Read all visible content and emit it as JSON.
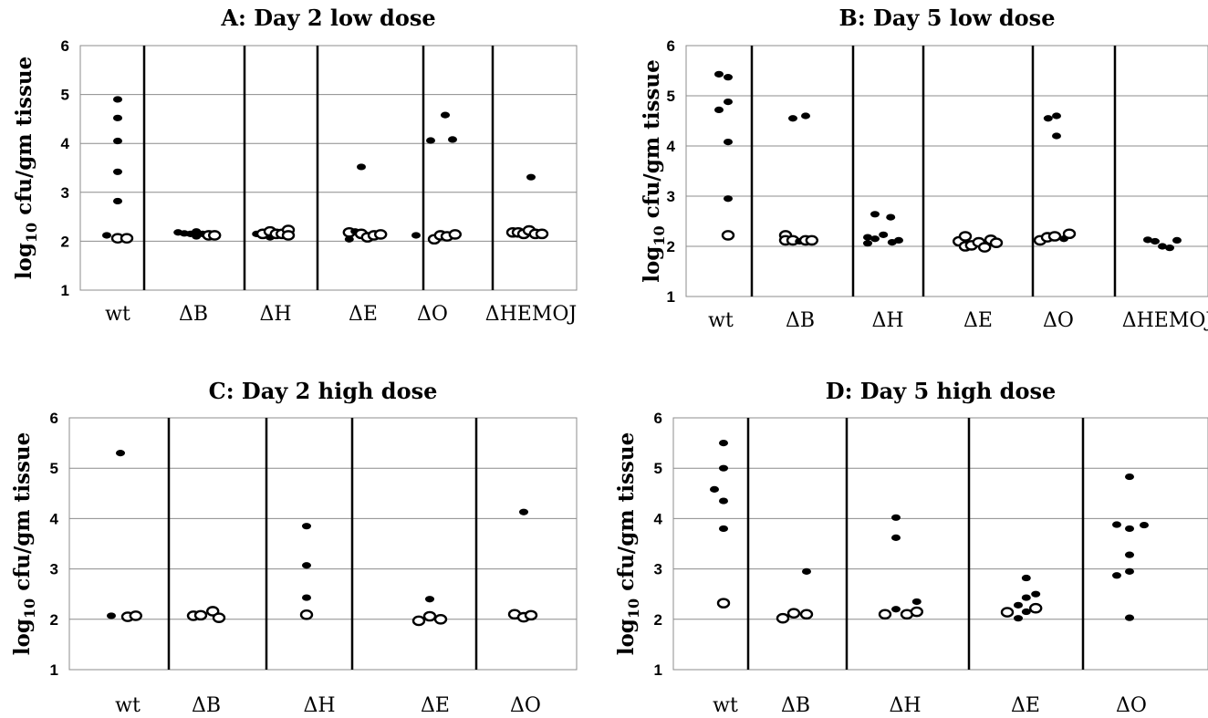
{
  "chart_data": [
    {
      "type": "scatter",
      "title": "A: Day 2 low dose",
      "ylabel_main": "log",
      "ylabel_sub": "10",
      "ylabel_rest": " cfu/gm tissue",
      "ylim": [
        1,
        6
      ],
      "yticks": [
        "1",
        "2",
        "3",
        "4",
        "5",
        "6"
      ],
      "grid": true,
      "categories": [
        "wt",
        "ΔB",
        "ΔH",
        "ΔE",
        "ΔO",
        "ΔHEMOJ"
      ],
      "points": [
        {
          "category": "wt",
          "offset": -0.3,
          "y": 2.12,
          "marker": "filled"
        },
        {
          "category": "wt",
          "offset": 0.0,
          "y": 4.9,
          "marker": "filled"
        },
        {
          "category": "wt",
          "offset": 0.0,
          "y": 4.52,
          "marker": "filled"
        },
        {
          "category": "wt",
          "offset": 0.0,
          "y": 4.05,
          "marker": "filled"
        },
        {
          "category": "wt",
          "offset": 0.0,
          "y": 3.42,
          "marker": "filled"
        },
        {
          "category": "wt",
          "offset": 0.0,
          "y": 2.82,
          "marker": "filled"
        },
        {
          "category": "wt",
          "offset": 0.0,
          "y": 2.06,
          "marker": "open"
        },
        {
          "category": "wt",
          "offset": 0.25,
          "y": 2.06,
          "marker": "open"
        },
        {
          "category": "ΔB",
          "offset": -0.42,
          "y": 2.18,
          "marker": "filled"
        },
        {
          "category": "ΔB",
          "offset": -0.25,
          "y": 2.16,
          "marker": "filled"
        },
        {
          "category": "ΔB",
          "offset": -0.08,
          "y": 2.15,
          "marker": "filled"
        },
        {
          "category": "ΔB",
          "offset": 0.08,
          "y": 2.2,
          "marker": "filled"
        },
        {
          "category": "ΔB",
          "offset": 0.08,
          "y": 2.1,
          "marker": "filled"
        },
        {
          "category": "ΔB",
          "offset": 0.25,
          "y": 2.15,
          "marker": "filled"
        },
        {
          "category": "ΔB",
          "offset": 0.42,
          "y": 2.12,
          "marker": "open"
        },
        {
          "category": "ΔB",
          "offset": 0.58,
          "y": 2.12,
          "marker": "open"
        },
        {
          "category": "ΔH",
          "offset": -0.52,
          "y": 2.15,
          "marker": "filled"
        },
        {
          "category": "ΔH",
          "offset": -0.35,
          "y": 2.15,
          "marker": "open"
        },
        {
          "category": "ΔH",
          "offset": -0.15,
          "y": 2.2,
          "marker": "open"
        },
        {
          "category": "ΔH",
          "offset": -0.15,
          "y": 2.08,
          "marker": "filled"
        },
        {
          "category": "ΔH",
          "offset": 0.02,
          "y": 2.15,
          "marker": "open"
        },
        {
          "category": "ΔH",
          "offset": 0.18,
          "y": 2.15,
          "marker": "open"
        },
        {
          "category": "ΔH",
          "offset": 0.35,
          "y": 2.23,
          "marker": "open"
        },
        {
          "category": "ΔH",
          "offset": 0.35,
          "y": 2.12,
          "marker": "open"
        },
        {
          "category": "ΔE",
          "offset": -0.38,
          "y": 2.18,
          "marker": "open"
        },
        {
          "category": "ΔE",
          "offset": -0.38,
          "y": 2.04,
          "marker": "filled"
        },
        {
          "category": "ΔE",
          "offset": -0.22,
          "y": 2.2,
          "marker": "filled"
        },
        {
          "category": "ΔE",
          "offset": -0.05,
          "y": 3.52,
          "marker": "filled"
        },
        {
          "category": "ΔE",
          "offset": -0.05,
          "y": 2.15,
          "marker": "open"
        },
        {
          "category": "ΔE",
          "offset": 0.12,
          "y": 2.08,
          "marker": "open"
        },
        {
          "category": "ΔE",
          "offset": 0.3,
          "y": 2.12,
          "marker": "open"
        },
        {
          "category": "ΔE",
          "offset": 0.48,
          "y": 2.14,
          "marker": "open"
        },
        {
          "category": "ΔO",
          "offset": -0.45,
          "y": 2.12,
          "marker": "filled"
        },
        {
          "category": "ΔO",
          "offset": -0.05,
          "y": 4.06,
          "marker": "filled"
        },
        {
          "category": "ΔO",
          "offset": 0.05,
          "y": 2.04,
          "marker": "open"
        },
        {
          "category": "ΔO",
          "offset": 0.22,
          "y": 2.12,
          "marker": "open"
        },
        {
          "category": "ΔO",
          "offset": 0.35,
          "y": 4.58,
          "marker": "filled"
        },
        {
          "category": "ΔO",
          "offset": 0.4,
          "y": 2.1,
          "marker": "open"
        },
        {
          "category": "ΔO",
          "offset": 0.55,
          "y": 4.08,
          "marker": "filled"
        },
        {
          "category": "ΔO",
          "offset": 0.62,
          "y": 2.14,
          "marker": "open"
        },
        {
          "category": "ΔHEMOJ",
          "offset": -0.5,
          "y": 2.18,
          "marker": "open"
        },
        {
          "category": "ΔHEMOJ",
          "offset": -0.35,
          "y": 2.18,
          "marker": "open"
        },
        {
          "category": "ΔHEMOJ",
          "offset": -0.2,
          "y": 2.15,
          "marker": "open"
        },
        {
          "category": "ΔHEMOJ",
          "offset": -0.05,
          "y": 2.22,
          "marker": "open"
        },
        {
          "category": "ΔHEMOJ",
          "offset": 0.0,
          "y": 3.31,
          "marker": "filled"
        },
        {
          "category": "ΔHEMOJ",
          "offset": 0.12,
          "y": 2.15,
          "marker": "open"
        },
        {
          "category": "ΔHEMOJ",
          "offset": 0.3,
          "y": 2.15,
          "marker": "open"
        }
      ]
    },
    {
      "type": "scatter",
      "title": "B: Day 5 low dose",
      "ylabel_main": "log",
      "ylabel_sub": "10",
      "ylabel_rest": " cfu/gm tissue",
      "ylim": [
        1,
        6
      ],
      "yticks": [
        "1",
        "2",
        "3",
        "4",
        "5",
        "6"
      ],
      "grid": true,
      "categories": [
        "wt",
        "ΔB",
        "ΔH",
        "ΔE",
        "ΔO",
        "ΔHEMOJ"
      ],
      "points": [
        {
          "category": "wt",
          "offset": -0.05,
          "y": 5.43,
          "marker": "filled"
        },
        {
          "category": "wt",
          "offset": -0.05,
          "y": 4.72,
          "marker": "filled"
        },
        {
          "category": "wt",
          "offset": 0.2,
          "y": 5.37,
          "marker": "filled"
        },
        {
          "category": "wt",
          "offset": 0.2,
          "y": 4.88,
          "marker": "filled"
        },
        {
          "category": "wt",
          "offset": 0.2,
          "y": 4.08,
          "marker": "filled"
        },
        {
          "category": "wt",
          "offset": 0.2,
          "y": 2.95,
          "marker": "filled"
        },
        {
          "category": "wt",
          "offset": 0.2,
          "y": 2.22,
          "marker": "open"
        },
        {
          "category": "ΔB",
          "offset": -0.4,
          "y": 2.22,
          "marker": "open"
        },
        {
          "category": "ΔB",
          "offset": -0.4,
          "y": 2.12,
          "marker": "open"
        },
        {
          "category": "ΔB",
          "offset": -0.2,
          "y": 4.55,
          "marker": "filled"
        },
        {
          "category": "ΔB",
          "offset": -0.2,
          "y": 2.12,
          "marker": "open"
        },
        {
          "category": "ΔB",
          "offset": -0.02,
          "y": 2.1,
          "marker": "filled"
        },
        {
          "category": "ΔB",
          "offset": 0.15,
          "y": 4.6,
          "marker": "filled"
        },
        {
          "category": "ΔB",
          "offset": 0.15,
          "y": 2.12,
          "marker": "open"
        },
        {
          "category": "ΔB",
          "offset": 0.32,
          "y": 2.12,
          "marker": "open"
        },
        {
          "category": "ΔH",
          "offset": -0.55,
          "y": 2.18,
          "marker": "filled"
        },
        {
          "category": "ΔH",
          "offset": -0.55,
          "y": 2.06,
          "marker": "filled"
        },
        {
          "category": "ΔH",
          "offset": -0.35,
          "y": 2.64,
          "marker": "filled"
        },
        {
          "category": "ΔH",
          "offset": -0.35,
          "y": 2.15,
          "marker": "filled"
        },
        {
          "category": "ΔH",
          "offset": -0.12,
          "y": 2.23,
          "marker": "filled"
        },
        {
          "category": "ΔH",
          "offset": 0.08,
          "y": 2.58,
          "marker": "filled"
        },
        {
          "category": "ΔH",
          "offset": 0.12,
          "y": 2.08,
          "marker": "filled"
        },
        {
          "category": "ΔH",
          "offset": 0.3,
          "y": 2.12,
          "marker": "filled"
        },
        {
          "category": "ΔE",
          "offset": -0.52,
          "y": 2.1,
          "marker": "open"
        },
        {
          "category": "ΔE",
          "offset": -0.35,
          "y": 2.2,
          "marker": "open"
        },
        {
          "category": "ΔE",
          "offset": -0.35,
          "y": 2.0,
          "marker": "open"
        },
        {
          "category": "ΔE",
          "offset": -0.18,
          "y": 2.02,
          "marker": "open"
        },
        {
          "category": "ΔE",
          "offset": 0.02,
          "y": 2.08,
          "marker": "open"
        },
        {
          "category": "ΔE",
          "offset": 0.18,
          "y": 1.98,
          "marker": "open"
        },
        {
          "category": "ΔE",
          "offset": 0.35,
          "y": 2.13,
          "marker": "open"
        },
        {
          "category": "ΔE",
          "offset": 0.5,
          "y": 2.07,
          "marker": "open"
        },
        {
          "category": "ΔO",
          "offset": -0.5,
          "y": 2.12,
          "marker": "open"
        },
        {
          "category": "ΔO",
          "offset": -0.28,
          "y": 4.55,
          "marker": "filled"
        },
        {
          "category": "ΔO",
          "offset": -0.3,
          "y": 2.18,
          "marker": "open"
        },
        {
          "category": "ΔO",
          "offset": -0.05,
          "y": 4.6,
          "marker": "filled"
        },
        {
          "category": "ΔO",
          "offset": -0.05,
          "y": 4.2,
          "marker": "filled"
        },
        {
          "category": "ΔO",
          "offset": -0.1,
          "y": 2.2,
          "marker": "open"
        },
        {
          "category": "ΔO",
          "offset": 0.15,
          "y": 2.15,
          "marker": "filled"
        },
        {
          "category": "ΔO",
          "offset": 0.3,
          "y": 2.25,
          "marker": "open"
        },
        {
          "category": "ΔHEMOJ",
          "offset": -0.55,
          "y": 2.13,
          "marker": "filled"
        },
        {
          "category": "ΔHEMOJ",
          "offset": -0.35,
          "y": 2.1,
          "marker": "filled"
        },
        {
          "category": "ΔHEMOJ",
          "offset": -0.15,
          "y": 2.0,
          "marker": "filled"
        },
        {
          "category": "ΔHEMOJ",
          "offset": 0.05,
          "y": 1.97,
          "marker": "filled"
        },
        {
          "category": "ΔHEMOJ",
          "offset": 0.25,
          "y": 2.12,
          "marker": "filled"
        }
      ]
    },
    {
      "type": "scatter",
      "title": "C: Day 2 high dose",
      "ylabel_main": "log",
      "ylabel_sub": "10",
      "ylabel_rest": " cfu/gm tissue",
      "ylim": [
        1,
        6
      ],
      "yticks": [
        "1",
        "2",
        "3",
        "4",
        "5",
        "6"
      ],
      "grid": true,
      "categories": [
        "wt",
        "ΔB",
        "ΔH",
        "ΔE",
        "ΔO"
      ],
      "points": [
        {
          "category": "wt",
          "offset": -0.45,
          "y": 2.07,
          "marker": "filled"
        },
        {
          "category": "wt",
          "offset": -0.2,
          "y": 5.3,
          "marker": "filled"
        },
        {
          "category": "wt",
          "offset": 0.0,
          "y": 2.05,
          "marker": "open"
        },
        {
          "category": "wt",
          "offset": 0.22,
          "y": 2.07,
          "marker": "open"
        },
        {
          "category": "ΔB",
          "offset": -0.35,
          "y": 2.07,
          "marker": "open"
        },
        {
          "category": "ΔB",
          "offset": -0.15,
          "y": 2.08,
          "marker": "open"
        },
        {
          "category": "ΔB",
          "offset": 0.18,
          "y": 2.16,
          "marker": "open"
        },
        {
          "category": "ΔB",
          "offset": 0.35,
          "y": 2.03,
          "marker": "open"
        },
        {
          "category": "ΔH",
          "offset": -0.35,
          "y": 3.85,
          "marker": "filled"
        },
        {
          "category": "ΔH",
          "offset": -0.35,
          "y": 3.07,
          "marker": "filled"
        },
        {
          "category": "ΔH",
          "offset": -0.35,
          "y": 2.43,
          "marker": "filled"
        },
        {
          "category": "ΔH",
          "offset": -0.35,
          "y": 2.09,
          "marker": "open"
        },
        {
          "category": "ΔE",
          "offset": -0.45,
          "y": 1.97,
          "marker": "open"
        },
        {
          "category": "ΔE",
          "offset": -0.15,
          "y": 2.4,
          "marker": "filled"
        },
        {
          "category": "ΔE",
          "offset": -0.15,
          "y": 2.06,
          "marker": "open"
        },
        {
          "category": "ΔE",
          "offset": 0.15,
          "y": 2.0,
          "marker": "open"
        },
        {
          "category": "ΔO",
          "offset": -0.3,
          "y": 2.1,
          "marker": "open"
        },
        {
          "category": "ΔO",
          "offset": -0.05,
          "y": 4.13,
          "marker": "filled"
        },
        {
          "category": "ΔO",
          "offset": -0.05,
          "y": 2.04,
          "marker": "open"
        },
        {
          "category": "ΔO",
          "offset": 0.15,
          "y": 2.08,
          "marker": "open"
        }
      ]
    },
    {
      "type": "scatter",
      "title": "D: Day 5 high dose",
      "ylabel_main": "log",
      "ylabel_sub": "10",
      "ylabel_rest": " cfu/gm tissue",
      "ylim": [
        1,
        6
      ],
      "yticks": [
        "1",
        "2",
        "3",
        "4",
        "5",
        "6"
      ],
      "grid": true,
      "categories": [
        "wt",
        "ΔB",
        "ΔH",
        "ΔE",
        "ΔO"
      ],
      "points": [
        {
          "category": "wt",
          "offset": -0.3,
          "y": 4.58,
          "marker": "filled"
        },
        {
          "category": "wt",
          "offset": -0.05,
          "y": 5.5,
          "marker": "filled"
        },
        {
          "category": "wt",
          "offset": -0.05,
          "y": 5.0,
          "marker": "filled"
        },
        {
          "category": "wt",
          "offset": -0.05,
          "y": 4.35,
          "marker": "filled"
        },
        {
          "category": "wt",
          "offset": -0.05,
          "y": 3.8,
          "marker": "filled"
        },
        {
          "category": "wt",
          "offset": -0.05,
          "y": 2.32,
          "marker": "open"
        },
        {
          "category": "ΔB",
          "offset": -0.35,
          "y": 2.02,
          "marker": "open"
        },
        {
          "category": "ΔB",
          "offset": -0.05,
          "y": 2.12,
          "marker": "open"
        },
        {
          "category": "ΔB",
          "offset": 0.3,
          "y": 2.95,
          "marker": "filled"
        },
        {
          "category": "ΔB",
          "offset": 0.3,
          "y": 2.1,
          "marker": "open"
        },
        {
          "category": "ΔH",
          "offset": -0.55,
          "y": 2.1,
          "marker": "open"
        },
        {
          "category": "ΔH",
          "offset": -0.25,
          "y": 4.02,
          "marker": "filled"
        },
        {
          "category": "ΔH",
          "offset": -0.25,
          "y": 3.62,
          "marker": "filled"
        },
        {
          "category": "ΔH",
          "offset": -0.25,
          "y": 2.2,
          "marker": "filled"
        },
        {
          "category": "ΔH",
          "offset": 0.05,
          "y": 2.1,
          "marker": "open"
        },
        {
          "category": "ΔH",
          "offset": 0.32,
          "y": 2.35,
          "marker": "filled"
        },
        {
          "category": "ΔH",
          "offset": 0.32,
          "y": 2.15,
          "marker": "open"
        },
        {
          "category": "ΔE",
          "offset": -0.5,
          "y": 2.14,
          "marker": "open"
        },
        {
          "category": "ΔE",
          "offset": -0.2,
          "y": 2.28,
          "marker": "filled"
        },
        {
          "category": "ΔE",
          "offset": -0.2,
          "y": 2.02,
          "marker": "filled"
        },
        {
          "category": "ΔE",
          "offset": 0.02,
          "y": 2.82,
          "marker": "filled"
        },
        {
          "category": "ΔE",
          "offset": 0.02,
          "y": 2.43,
          "marker": "filled"
        },
        {
          "category": "ΔE",
          "offset": 0.02,
          "y": 2.15,
          "marker": "filled"
        },
        {
          "category": "ΔE",
          "offset": 0.28,
          "y": 2.5,
          "marker": "filled"
        },
        {
          "category": "ΔE",
          "offset": 0.28,
          "y": 2.22,
          "marker": "open"
        },
        {
          "category": "ΔO",
          "offset": -0.4,
          "y": 3.88,
          "marker": "filled"
        },
        {
          "category": "ΔO",
          "offset": -0.4,
          "y": 2.87,
          "marker": "filled"
        },
        {
          "category": "ΔO",
          "offset": -0.05,
          "y": 4.83,
          "marker": "filled"
        },
        {
          "category": "ΔO",
          "offset": -0.05,
          "y": 3.8,
          "marker": "filled"
        },
        {
          "category": "ΔO",
          "offset": -0.05,
          "y": 3.28,
          "marker": "filled"
        },
        {
          "category": "ΔO",
          "offset": -0.05,
          "y": 2.95,
          "marker": "filled"
        },
        {
          "category": "ΔO",
          "offset": -0.05,
          "y": 2.03,
          "marker": "filled"
        },
        {
          "category": "ΔO",
          "offset": 0.35,
          "y": 3.87,
          "marker": "filled"
        }
      ]
    }
  ]
}
